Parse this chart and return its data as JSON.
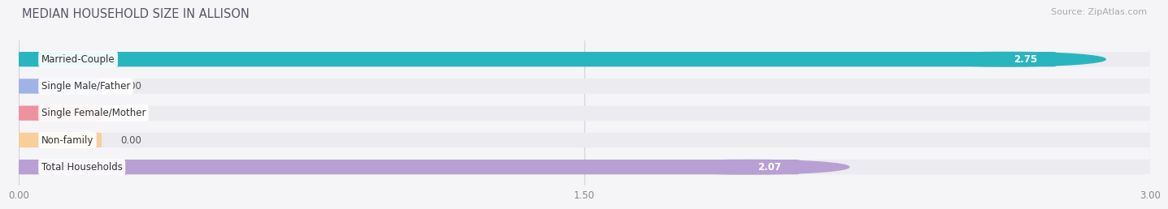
{
  "title": "MEDIAN HOUSEHOLD SIZE IN ALLISON",
  "source": "Source: ZipAtlas.com",
  "categories": [
    "Married-Couple",
    "Single Male/Father",
    "Single Female/Mother",
    "Non-family",
    "Total Households"
  ],
  "values": [
    2.75,
    0.0,
    0.0,
    0.0,
    2.07
  ],
  "bar_colors": [
    "#29b5be",
    "#9eb4e8",
    "#f0919f",
    "#f8ce9a",
    "#b89fd4"
  ],
  "bar_bg_color": "#ebebf0",
  "xlim": [
    0,
    3.0
  ],
  "xticks": [
    0.0,
    1.5,
    3.0
  ],
  "xtick_labels": [
    "0.00",
    "1.50",
    "3.00"
  ],
  "label_fontsize": 8.5,
  "value_fontsize": 8.5,
  "title_fontsize": 10.5,
  "source_fontsize": 8,
  "background_color": "#f5f5f8",
  "bar_height": 0.55,
  "zero_bar_width": 0.22
}
